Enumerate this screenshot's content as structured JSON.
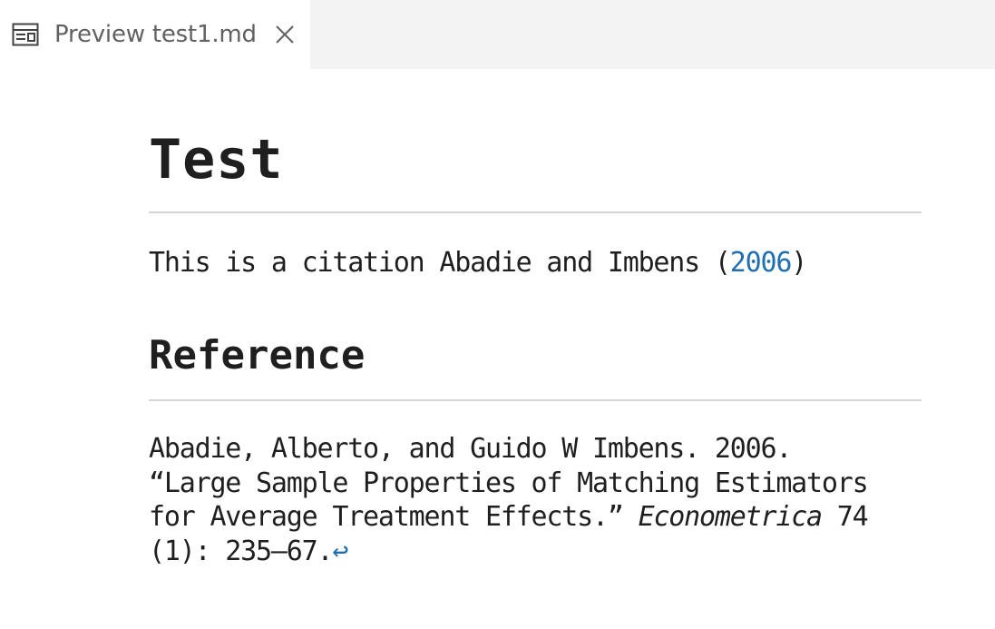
{
  "tab": {
    "icon": "preview-icon",
    "label": "Preview test1.md",
    "close_icon": "close-icon"
  },
  "document": {
    "title": "Test",
    "paragraph": {
      "text_before": "This is a citation Abadie and Imbens (",
      "citation_year": "2006",
      "text_after": ")"
    },
    "references_heading": "Reference",
    "reference": {
      "line1": "Abadie, Alberto, and Guido W Imbens. 2006.",
      "line2": "“Large Sample Properties of Matching Estimators",
      "line3_before": "for Average Treatment Effects.” ",
      "journal": "Econometrica",
      "line3_after": " 74",
      "line4": "(1): 235–67.",
      "backref_symbol": "↩"
    }
  },
  "colors": {
    "link": "#1f6fb2",
    "text": "#1f1f1f",
    "tabbar_bg": "#f3f3f3",
    "divider": "#d4d4d4"
  }
}
